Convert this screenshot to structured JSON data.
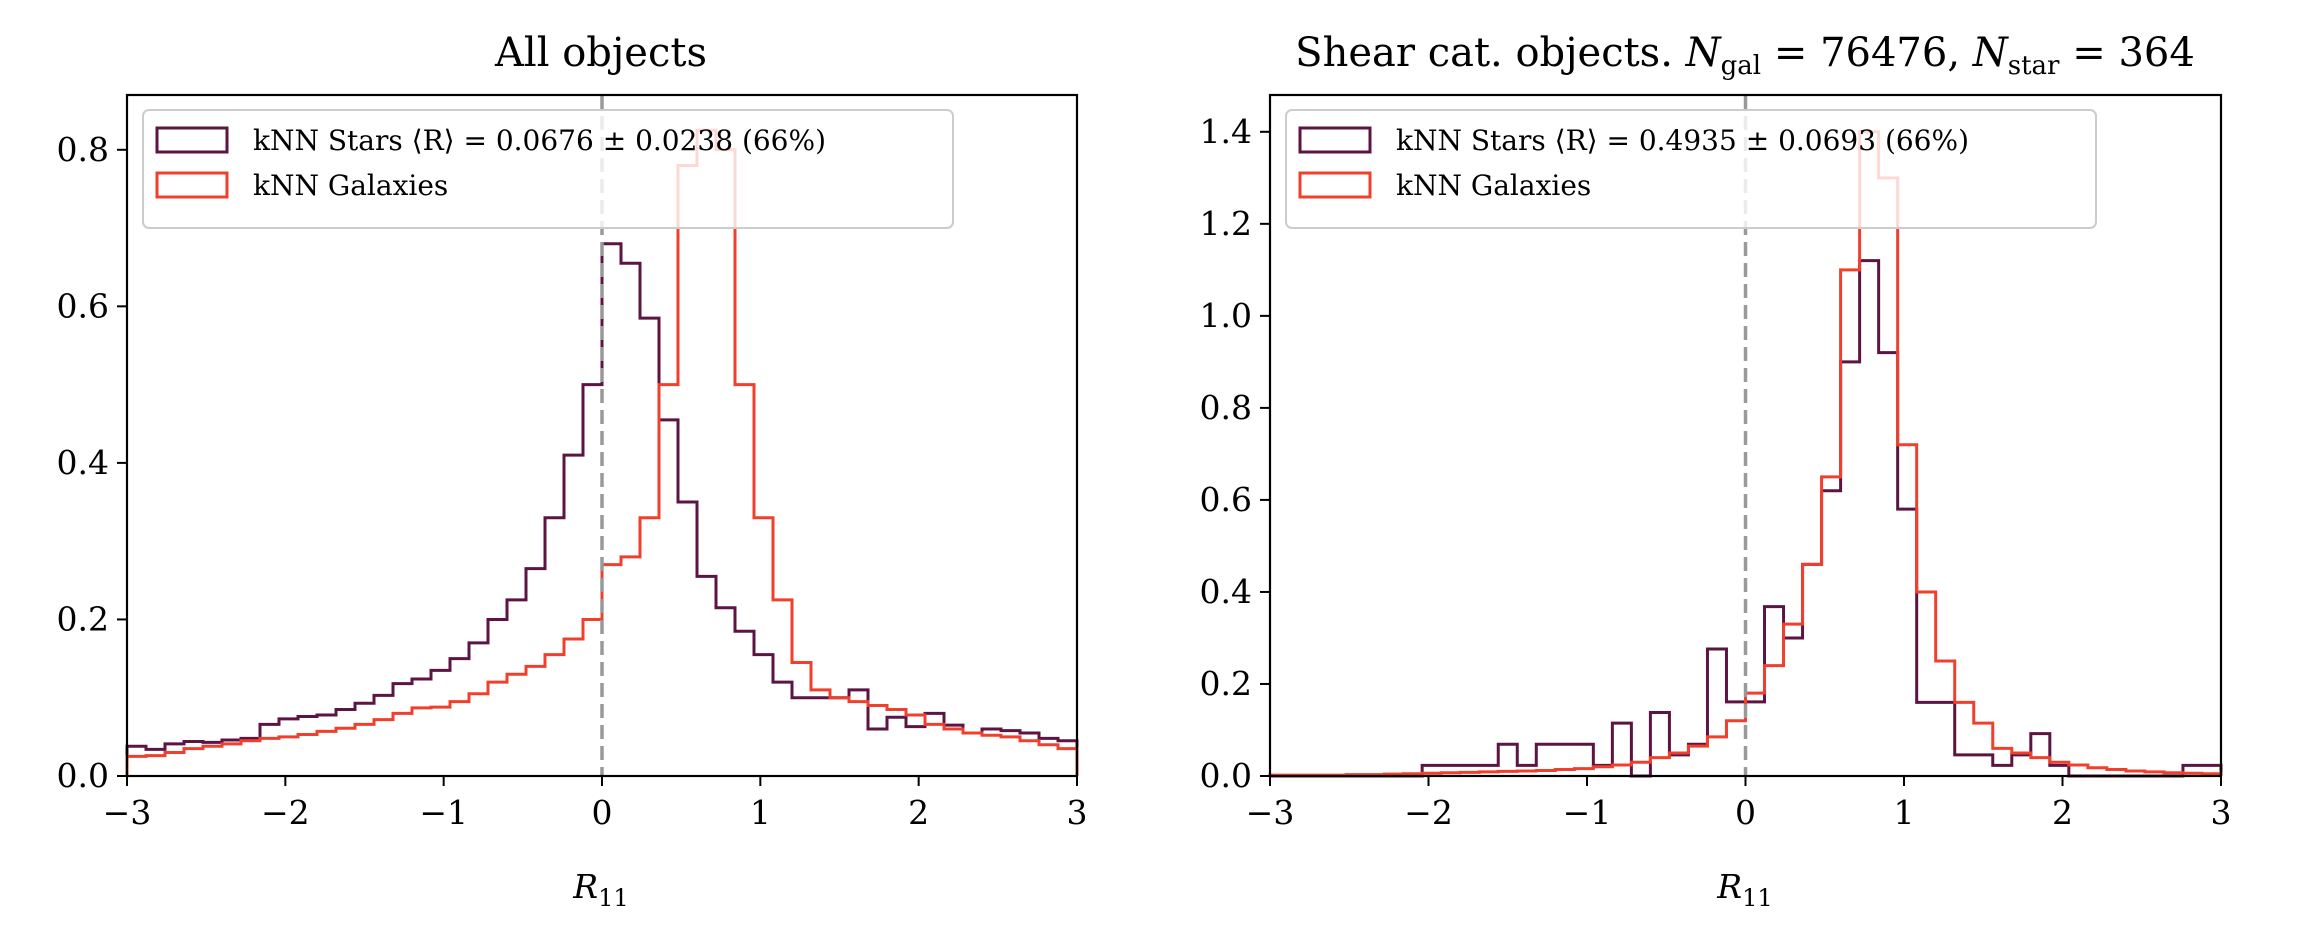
{
  "figure": {
    "stars_color": "#5c1543",
    "galaxies_color": "#f0402d",
    "zero_line_color": "#999999"
  },
  "chart_data": [
    {
      "type": "histogram",
      "title": "All objects",
      "xlabel_main": "R",
      "xlabel_sub": "11",
      "xlim": [
        -3,
        3
      ],
      "ylim": [
        0,
        0.87
      ],
      "xticks": [
        -3,
        -2,
        -1,
        0,
        1,
        2,
        3
      ],
      "xtick_labels": [
        "−3",
        "−2",
        "−1",
        "0",
        "1",
        "2",
        "3"
      ],
      "yticks": [
        0,
        0.2,
        0.4,
        0.6,
        0.8
      ],
      "ytick_labels": [
        "0.0",
        "0.2",
        "0.4",
        "0.6",
        "0.8"
      ],
      "vline_x": 0,
      "legend_position": "upper-left",
      "bin_start": -3,
      "bin_width": 0.12,
      "series": [
        {
          "name": "kNN Stars ⟨R⟩ = 0.0676 ± 0.0238 (66%)",
          "color_key": "stars_color",
          "values": [
            0.038,
            0.034,
            0.041,
            0.044,
            0.043,
            0.046,
            0.048,
            0.066,
            0.073,
            0.076,
            0.078,
            0.085,
            0.093,
            0.103,
            0.118,
            0.124,
            0.135,
            0.15,
            0.17,
            0.2,
            0.225,
            0.265,
            0.33,
            0.41,
            0.5,
            0.68,
            0.655,
            0.585,
            0.455,
            0.35,
            0.255,
            0.215,
            0.185,
            0.155,
            0.12,
            0.1,
            0.1,
            0.1,
            0.11,
            0.06,
            0.075,
            0.063,
            0.08,
            0.065,
            0.055,
            0.06,
            0.058,
            0.055,
            0.048,
            0.045
          ]
        },
        {
          "name": "kNN Galaxies",
          "color_key": "galaxies_color",
          "values": [
            0.025,
            0.026,
            0.03,
            0.035,
            0.038,
            0.041,
            0.045,
            0.048,
            0.05,
            0.053,
            0.057,
            0.061,
            0.066,
            0.072,
            0.08,
            0.087,
            0.088,
            0.095,
            0.105,
            0.12,
            0.13,
            0.14,
            0.155,
            0.175,
            0.2,
            0.27,
            0.28,
            0.33,
            0.5,
            0.78,
            0.825,
            0.8,
            0.5,
            0.33,
            0.225,
            0.145,
            0.11,
            0.1,
            0.095,
            0.09,
            0.085,
            0.078,
            0.066,
            0.06,
            0.055,
            0.052,
            0.05,
            0.045,
            0.04,
            0.035
          ]
        }
      ]
    },
    {
      "type": "histogram",
      "title_prefix": "Shear cat. objects.",
      "title_ngal_sub": "gal",
      "title_ngal_value": "76476",
      "title_nstar_sub": "star",
      "title_nstar_value": "364",
      "xlabel_main": "R",
      "xlabel_sub": "11",
      "xlim": [
        -3,
        3
      ],
      "ylim": [
        0,
        1.48
      ],
      "xticks": [
        -3,
        -2,
        -1,
        0,
        1,
        2,
        3
      ],
      "xtick_labels": [
        "−3",
        "−2",
        "−1",
        "0",
        "1",
        "2",
        "3"
      ],
      "yticks": [
        0,
        0.2,
        0.4,
        0.6,
        0.8,
        1.0,
        1.2,
        1.4
      ],
      "ytick_labels": [
        "0.0",
        "0.2",
        "0.4",
        "0.6",
        "0.8",
        "1.0",
        "1.2",
        "1.4"
      ],
      "vline_x": 0,
      "legend_position": "upper-left",
      "bin_start": -3,
      "bin_width": 0.12,
      "series": [
        {
          "name": "kNN Stars ⟨R⟩ = 0.4935 ± 0.0693 (66%)",
          "color_key": "stars_color",
          "values": [
            0,
            0,
            0,
            0,
            0,
            0,
            0,
            0,
            0.023,
            0.023,
            0.023,
            0.023,
            0.069,
            0.023,
            0.069,
            0.069,
            0.069,
            0.023,
            0.115,
            0,
            0.138,
            0.046,
            0.069,
            0.276,
            0.161,
            0.161,
            0.368,
            0.3,
            0.46,
            0.62,
            0.9,
            1.12,
            0.92,
            0.58,
            0.16,
            0.16,
            0.046,
            0.046,
            0.023,
            0.046,
            0.092,
            0.023,
            0,
            0,
            0,
            0,
            0,
            0,
            0.023,
            0.023
          ]
        },
        {
          "name": "kNN Galaxies",
          "color_key": "galaxies_color",
          "values": [
            0.002,
            0.002,
            0.002,
            0.002,
            0.003,
            0.003,
            0.004,
            0.005,
            0.006,
            0.007,
            0.008,
            0.009,
            0.01,
            0.011,
            0.012,
            0.014,
            0.016,
            0.02,
            0.024,
            0.03,
            0.04,
            0.05,
            0.065,
            0.085,
            0.12,
            0.18,
            0.24,
            0.33,
            0.46,
            0.65,
            1.1,
            1.4,
            1.3,
            0.72,
            0.4,
            0.25,
            0.16,
            0.115,
            0.06,
            0.05,
            0.04,
            0.03,
            0.024,
            0.018,
            0.014,
            0.011,
            0.009,
            0.007,
            0.006,
            0.005
          ]
        }
      ]
    }
  ]
}
